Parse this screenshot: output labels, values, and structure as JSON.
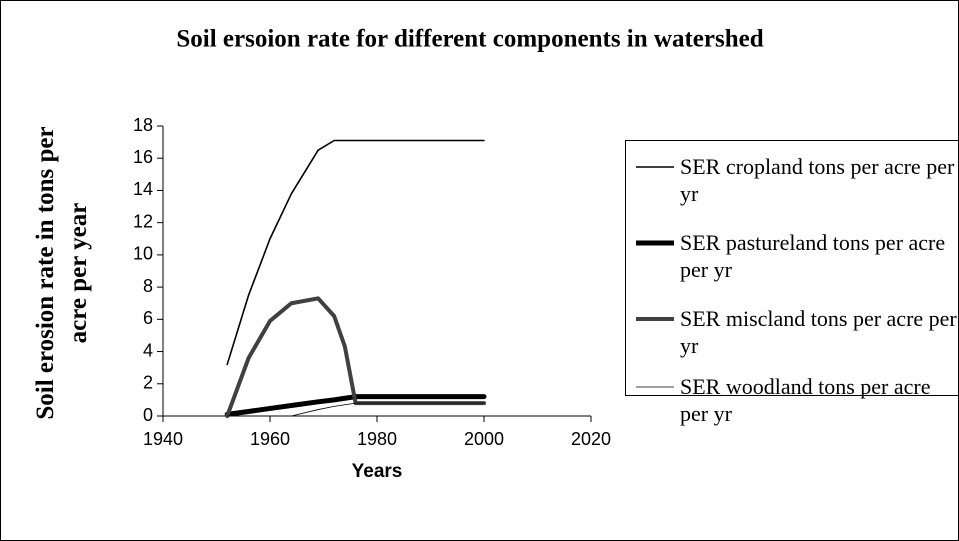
{
  "chart_data": {
    "type": "line",
    "title": "Soil ersoion rate for different components in watershed",
    "x_label": "Years",
    "y_label": "Soil erosion rate in tons per acre per year",
    "x": [
      1952,
      1956,
      1960,
      1964,
      1969,
      1972,
      1974,
      1976,
      2000
    ],
    "series": [
      {
        "name": "SER cropland tons per acre per yr",
        "color": "#000000",
        "width": 1.6,
        "values": [
          3.2,
          7.5,
          11,
          13.8,
          16.5,
          17.1,
          17.1,
          17.1,
          17.1
        ]
      },
      {
        "name": "SER pastureland tons per acre per yr",
        "color": "#000000",
        "width": 5,
        "values": [
          0.1,
          0.28,
          0.47,
          0.65,
          0.88,
          1.0,
          1.1,
          1.2,
          1.2
        ]
      },
      {
        "name": "SER miscland tons per acre per yr",
        "color": "#404040",
        "width": 4,
        "values": [
          0,
          3.6,
          5.9,
          7.0,
          7.3,
          6.2,
          4.3,
          0.8,
          0.8
        ]
      },
      {
        "name": "SER woodland tons per acre per yr",
        "color": "#000000",
        "width": 0.8,
        "values": [
          0,
          0,
          0,
          0,
          0.4,
          0.6,
          0.7,
          0.8,
          0.8
        ]
      }
    ],
    "xlim": [
      1940,
      2020
    ],
    "xticks": [
      1940,
      1960,
      1980,
      2000,
      2020
    ],
    "ylim": [
      0,
      18
    ],
    "yticks": [
      0,
      2,
      4,
      6,
      8,
      10,
      12,
      14,
      16,
      18
    ],
    "grid": false
  }
}
